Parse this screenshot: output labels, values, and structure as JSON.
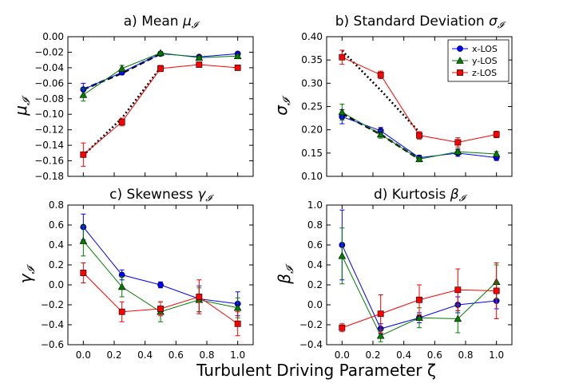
{
  "figure": {
    "xlabel": "Turbulent Driving Parameter ζ"
  },
  "legend": {
    "entries": [
      {
        "label": "x-LOS",
        "color": "#0000ff",
        "marker": "circle"
      },
      {
        "label": "y-LOS",
        "color": "#007f00",
        "marker": "triangle"
      },
      {
        "label": "z-LOS",
        "color": "#ff0000",
        "marker": "square"
      }
    ]
  },
  "chart_data": [
    {
      "id": "a",
      "type": "line",
      "title_prefix": "a) Mean ",
      "title_symbol": "μ",
      "ylabel": "μ",
      "symbol_sub": "𝓘",
      "x": [
        0.0,
        0.25,
        0.5,
        0.75,
        1.0
      ],
      "xlim": [
        -0.1,
        1.1
      ],
      "ylim": [
        -0.18,
        0.0
      ],
      "yticks": [
        -0.18,
        -0.16,
        -0.14,
        -0.12,
        -0.1,
        -0.08,
        -0.06,
        -0.04,
        -0.02,
        0.0
      ],
      "ytick_labels": [
        "−0.18",
        "−0.16",
        "−0.14",
        "−0.12",
        "−0.10",
        "−0.08",
        "−0.06",
        "−0.04",
        "−0.02",
        "0.00"
      ],
      "xticks": [
        0.0,
        0.2,
        0.4,
        0.6,
        0.8,
        1.0
      ],
      "show_xtick_labels": false,
      "series": [
        {
          "name": "x-LOS",
          "color": "#0000ff",
          "marker": "circle",
          "values": [
            -0.068,
            -0.046,
            -0.022,
            -0.026,
            -0.022
          ],
          "err": [
            0.008,
            0.003,
            0.002,
            0.002,
            0.002
          ]
        },
        {
          "name": "y-LOS",
          "color": "#007f00",
          "marker": "triangle",
          "values": [
            -0.075,
            -0.041,
            -0.021,
            -0.027,
            -0.025
          ],
          "err": [
            0.008,
            0.004,
            0.002,
            0.002,
            0.002
          ]
        },
        {
          "name": "z-LOS",
          "color": "#ff0000",
          "marker": "square",
          "values": [
            -0.152,
            -0.11,
            -0.041,
            -0.036,
            -0.04
          ],
          "err": [
            0.015,
            0.005,
            0.004,
            0.003,
            0.002
          ]
        }
      ],
      "dashed": [
        {
          "style": "dashed",
          "x": [
            0.0,
            0.25,
            0.5
          ],
          "y": [
            -0.068,
            -0.047,
            -0.022
          ]
        },
        {
          "style": "dotted",
          "x": [
            0.0,
            0.25,
            0.5
          ],
          "y": [
            -0.153,
            -0.105,
            -0.04
          ]
        }
      ]
    },
    {
      "id": "b",
      "type": "line",
      "title_prefix": "b) Standard Deviation ",
      "title_symbol": "σ",
      "ylabel": "σ",
      "symbol_sub": "𝓘",
      "x": [
        0.0,
        0.25,
        0.5,
        0.75,
        1.0
      ],
      "xlim": [
        -0.1,
        1.1
      ],
      "ylim": [
        0.1,
        0.4
      ],
      "yticks": [
        0.1,
        0.15,
        0.2,
        0.25,
        0.3,
        0.35,
        0.4
      ],
      "ytick_labels": [
        "0.10",
        "0.15",
        "0.20",
        "0.25",
        "0.30",
        "0.35",
        "0.40"
      ],
      "xticks": [
        0.0,
        0.2,
        0.4,
        0.6,
        0.8,
        1.0
      ],
      "show_xtick_labels": false,
      "legend": true,
      "series": [
        {
          "name": "x-LOS",
          "color": "#0000ff",
          "marker": "circle",
          "values": [
            0.228,
            0.198,
            0.14,
            0.15,
            0.14
          ],
          "err": [
            0.015,
            0.007,
            0.005,
            0.007,
            0.006
          ]
        },
        {
          "name": "y-LOS",
          "color": "#007f00",
          "marker": "triangle",
          "values": [
            0.238,
            0.19,
            0.137,
            0.153,
            0.148
          ],
          "err": [
            0.017,
            0.008,
            0.005,
            0.006,
            0.005
          ]
        },
        {
          "name": "z-LOS",
          "color": "#ff0000",
          "marker": "square",
          "values": [
            0.356,
            0.318,
            0.188,
            0.173,
            0.19
          ],
          "err": [
            0.015,
            0.008,
            0.008,
            0.01,
            0.007
          ]
        }
      ],
      "dashed": [
        {
          "style": "dashed",
          "x": [
            0.0,
            0.25,
            0.5
          ],
          "y": [
            0.235,
            0.19,
            0.137
          ]
        },
        {
          "style": "dotted",
          "x": [
            0.0,
            0.25,
            0.5
          ],
          "y": [
            0.37,
            0.285,
            0.195
          ]
        }
      ]
    },
    {
      "id": "c",
      "type": "line",
      "title_prefix": "c) Skewness ",
      "title_symbol": "γ",
      "ylabel": "γ",
      "symbol_sub": "𝓘",
      "x": [
        0.0,
        0.25,
        0.5,
        0.75,
        1.0
      ],
      "xlim": [
        -0.1,
        1.1
      ],
      "ylim": [
        -0.6,
        0.8
      ],
      "yticks": [
        -0.6,
        -0.4,
        -0.2,
        0.0,
        0.2,
        0.4,
        0.6,
        0.8
      ],
      "ytick_labels": [
        "−0.6",
        "−0.4",
        "−0.2",
        "0.0",
        "0.2",
        "0.4",
        "0.6",
        "0.8"
      ],
      "xticks": [
        0.0,
        0.2,
        0.4,
        0.6,
        0.8,
        1.0
      ],
      "xtick_labels": [
        "0.0",
        "0.2",
        "0.4",
        "0.6",
        "0.8",
        "1.0"
      ],
      "show_xtick_labels": true,
      "series": [
        {
          "name": "x-LOS",
          "color": "#0000ff",
          "marker": "circle",
          "values": [
            0.58,
            0.1,
            0.0,
            -0.14,
            -0.19
          ],
          "err": [
            0.13,
            0.05,
            0.03,
            0.13,
            0.12
          ]
        },
        {
          "name": "y-LOS",
          "color": "#007f00",
          "marker": "triangle",
          "values": [
            0.44,
            -0.02,
            -0.27,
            -0.15,
            -0.23
          ],
          "err": [
            0.15,
            0.1,
            0.1,
            0.12,
            0.1
          ]
        },
        {
          "name": "z-LOS",
          "color": "#ff0000",
          "marker": "square",
          "values": [
            0.12,
            -0.27,
            -0.24,
            -0.12,
            -0.39
          ],
          "err": [
            0.1,
            0.1,
            0.07,
            0.17,
            0.12
          ]
        }
      ]
    },
    {
      "id": "d",
      "type": "line",
      "title_prefix": "d) Kurtosis ",
      "title_symbol": "β",
      "ylabel": "β",
      "symbol_sub": "𝓘",
      "x": [
        0.0,
        0.25,
        0.5,
        0.75,
        1.0
      ],
      "xlim": [
        -0.1,
        1.1
      ],
      "ylim": [
        -0.4,
        1.0
      ],
      "yticks": [
        -0.4,
        -0.2,
        0.0,
        0.2,
        0.4,
        0.6,
        0.8,
        1.0
      ],
      "ytick_labels": [
        "−0.4",
        "−0.2",
        "0.0",
        "0.2",
        "0.4",
        "0.6",
        "0.8",
        "1.0"
      ],
      "xticks": [
        0.0,
        0.2,
        0.4,
        0.6,
        0.8,
        1.0
      ],
      "xtick_labels": [
        "0.0",
        "0.2",
        "0.4",
        "0.6",
        "0.8",
        "1.0"
      ],
      "show_xtick_labels": true,
      "series": [
        {
          "name": "x-LOS",
          "color": "#0000ff",
          "marker": "circle",
          "values": [
            0.6,
            -0.24,
            -0.13,
            0.0,
            0.04
          ],
          "err": [
            0.35,
            0.05,
            0.05,
            0.08,
            0.08
          ]
        },
        {
          "name": "y-LOS",
          "color": "#007f00",
          "marker": "triangle",
          "values": [
            0.49,
            -0.31,
            -0.13,
            -0.14,
            0.23
          ],
          "err": [
            0.28,
            0.06,
            0.1,
            0.14,
            0.17
          ]
        },
        {
          "name": "z-LOS",
          "color": "#ff0000",
          "marker": "square",
          "values": [
            -0.23,
            -0.09,
            0.05,
            0.15,
            0.14
          ],
          "err": [
            0.04,
            0.19,
            0.15,
            0.21,
            0.28
          ]
        }
      ]
    }
  ]
}
